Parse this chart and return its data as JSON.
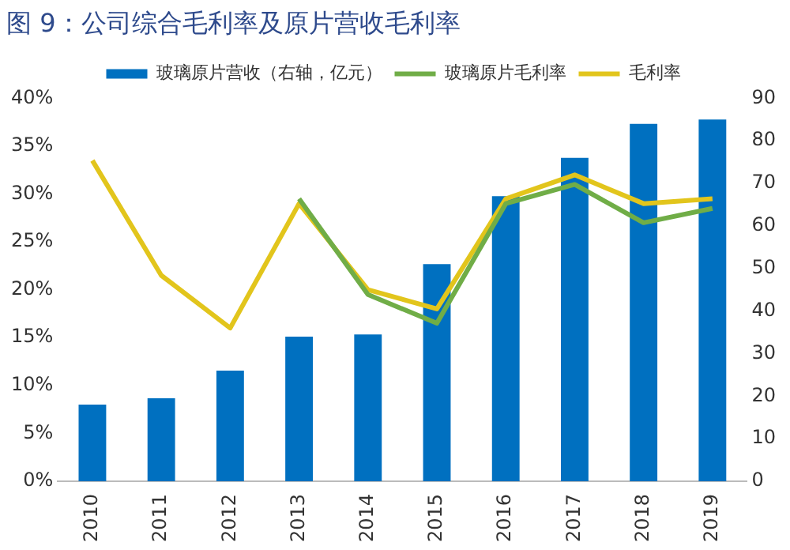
{
  "chart_data": {
    "type": "bar",
    "title": "图 9：公司综合毛利率及原片营收毛利率",
    "categories": [
      "2010",
      "2011",
      "2012",
      "2013",
      "2014",
      "2015",
      "2016",
      "2017",
      "2018",
      "2019"
    ],
    "series": [
      {
        "name": "玻璃原片营收（右轴，亿元）",
        "axis": "y2",
        "color": "#0070c0",
        "values": [
          18,
          19.5,
          26,
          34,
          34.5,
          51,
          67,
          76,
          84,
          85
        ]
      },
      {
        "name": "玻璃原片毛利率",
        "type": "line",
        "color": "#70ad47",
        "values": [
          null,
          null,
          null,
          29.5,
          19.5,
          16.5,
          29,
          31,
          27,
          28.5
        ]
      },
      {
        "name": "毛利率",
        "type": "line",
        "color": "#e2c51c",
        "values": [
          33.5,
          21.5,
          16,
          29,
          20,
          18,
          29.5,
          32,
          29,
          29.5
        ]
      }
    ],
    "ylim": [
      0,
      40
    ],
    "yticks": [
      {
        "value": 0,
        "label": "0%"
      },
      {
        "value": 5,
        "label": "5%"
      },
      {
        "value": 10,
        "label": "10%"
      },
      {
        "value": 15,
        "label": "15%"
      },
      {
        "value": 20,
        "label": "20%"
      },
      {
        "value": 25,
        "label": "25%"
      },
      {
        "value": 30,
        "label": "30%"
      },
      {
        "value": 35,
        "label": "35%"
      },
      {
        "value": 40,
        "label": "40%"
      }
    ],
    "y2lim": [
      0,
      90
    ],
    "y2ticks": [
      0,
      10,
      20,
      30,
      40,
      50,
      60,
      70,
      80,
      90
    ],
    "grid": false,
    "legend": "top",
    "marker": "none"
  }
}
